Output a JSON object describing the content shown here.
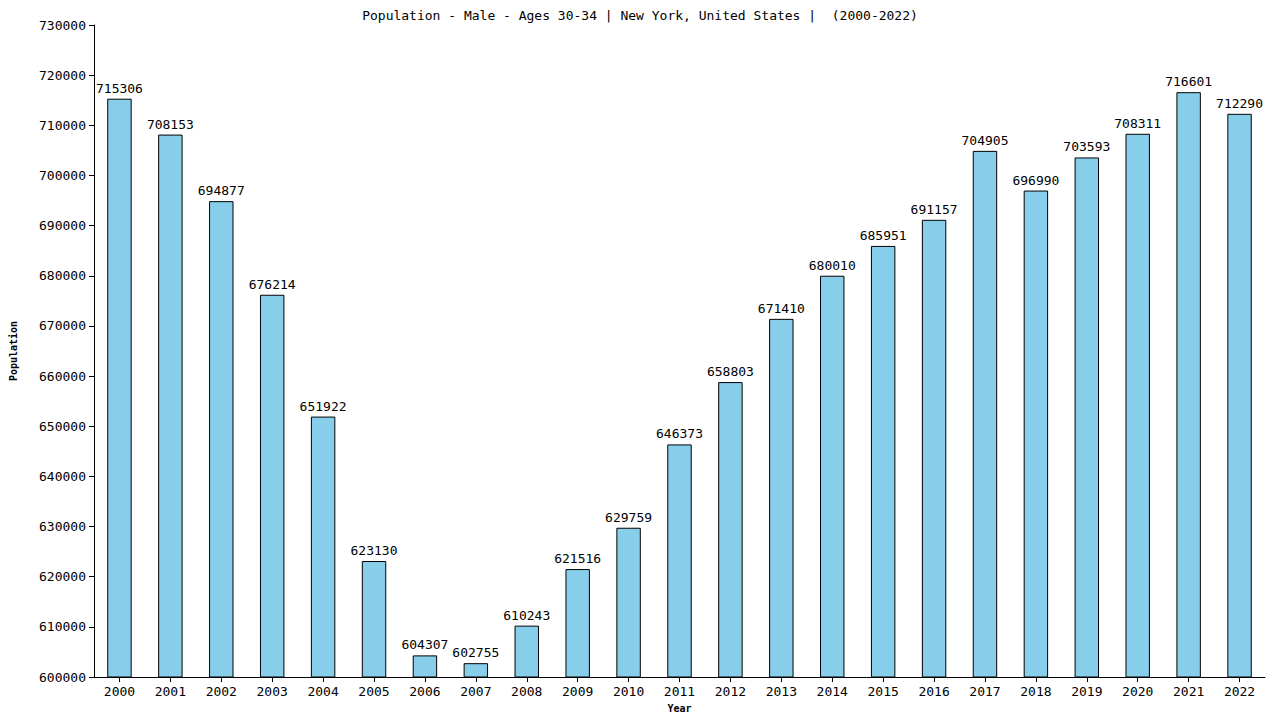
{
  "chart_data": {
    "type": "bar",
    "title": "Population - Male - Ages 30-34 | New York, United States |  (2000-2022)",
    "x_label": "Year",
    "y_label": "Population",
    "categories": [
      "2000",
      "2001",
      "2002",
      "2003",
      "2004",
      "2005",
      "2006",
      "2007",
      "2008",
      "2009",
      "2010",
      "2011",
      "2012",
      "2013",
      "2014",
      "2015",
      "2016",
      "2017",
      "2018",
      "2019",
      "2020",
      "2021",
      "2022"
    ],
    "values": [
      715306,
      708153,
      694877,
      676214,
      651922,
      623130,
      604307,
      602755,
      610243,
      621516,
      629759,
      646373,
      658803,
      671410,
      680010,
      685951,
      691157,
      704905,
      696990,
      703593,
      708311,
      716601,
      712290
    ],
    "color": "#87ceeb",
    "ylim": [
      600000,
      730000
    ],
    "yticks": [
      600000,
      610000,
      620000,
      630000,
      640000,
      650000,
      660000,
      670000,
      680000,
      690000,
      700000,
      710000,
      720000,
      730000
    ],
    "grid": false,
    "data_labels": true
  }
}
